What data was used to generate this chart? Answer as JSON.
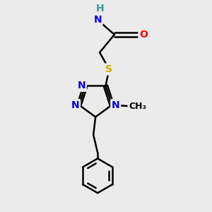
{
  "background_color": "#ebebeb",
  "atom_colors": {
    "N": "#0000ee",
    "O": "#ff0000",
    "S": "#ccaa00",
    "C": "#000000",
    "H": "#4a9090"
  },
  "bond_color": "#000000",
  "figsize": [
    3.0,
    3.0
  ],
  "dpi": 100
}
